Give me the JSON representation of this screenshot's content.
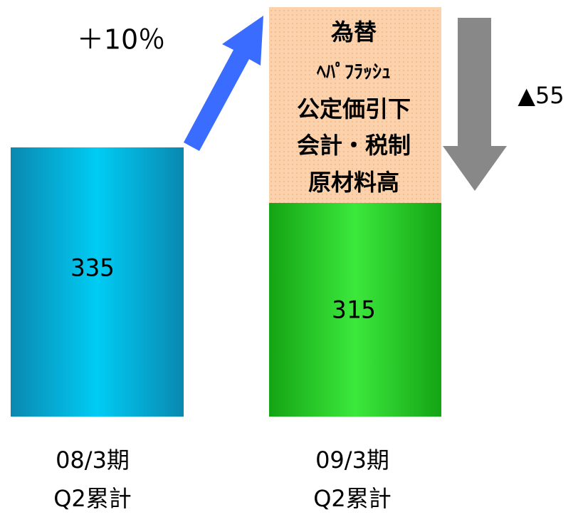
{
  "growth_label": "＋10％",
  "reduction": {
    "label": "▲55",
    "factors": [
      "為替",
      "ﾍﾊﾟﾌﾗｯｼｭ",
      "公定価引下",
      "会計・税制",
      "原材料高"
    ]
  },
  "bars": [
    {
      "value_label": "335",
      "period": "08/3期",
      "span": "Q2累計"
    },
    {
      "value_label": "315",
      "period": "09/3期",
      "span": "Q2累計"
    }
  ]
}
